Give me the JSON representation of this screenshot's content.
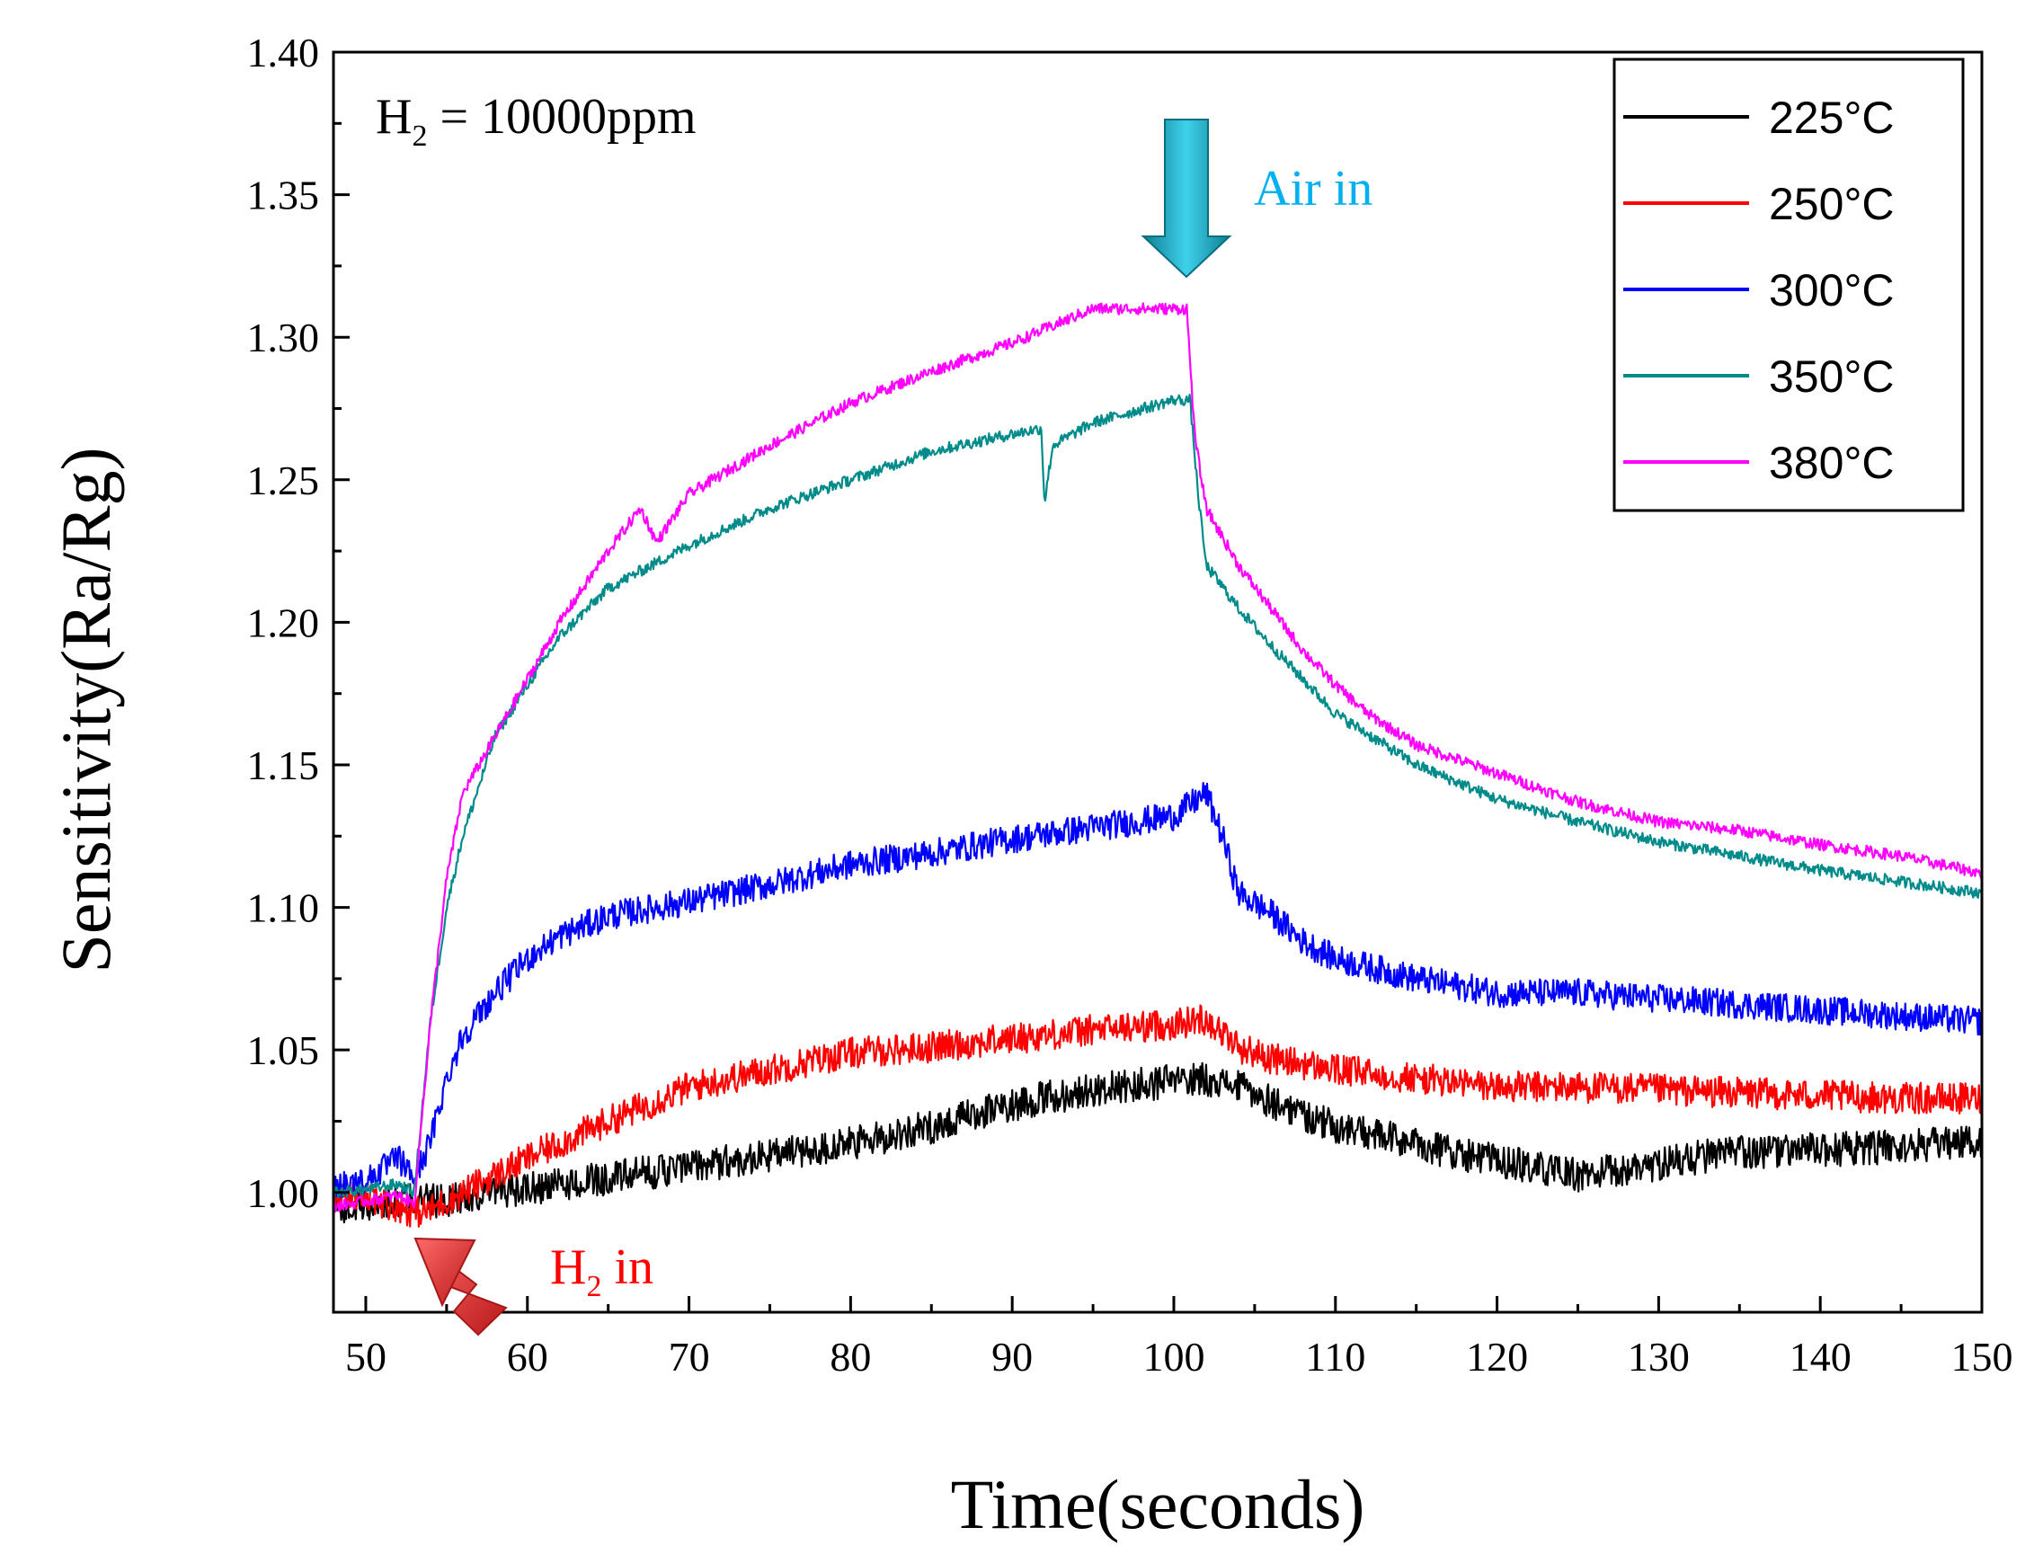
{
  "chart_data": {
    "type": "line",
    "title": "",
    "xlabel": "Time(seconds)",
    "ylabel": "Sensitivity(Ra/Rg)",
    "xlim": [
      48,
      150
    ],
    "ylim": [
      0.958,
      1.4
    ],
    "xticks": [
      50,
      60,
      70,
      80,
      90,
      100,
      110,
      120,
      130,
      140,
      150
    ],
    "xtick_labels": [
      "50",
      "60",
      "70",
      "80",
      "90",
      "100",
      "110",
      "120",
      "130",
      "140",
      "150"
    ],
    "yticks": [
      1.0,
      1.05,
      1.1,
      1.15,
      1.2,
      1.25,
      1.3,
      1.35,
      1.4
    ],
    "ytick_labels": [
      "1.00",
      "1.05",
      "1.10",
      "1.15",
      "1.20",
      "1.25",
      "1.30",
      "1.35",
      "1.40"
    ],
    "legend_position": "top-right",
    "series": [
      {
        "name": "225",
        "unit": "°C",
        "color": "#000000",
        "noise": 0.006,
        "points": [
          [
            48,
            0.995
          ],
          [
            50,
            0.995
          ],
          [
            52,
            0.997
          ],
          [
            54,
            0.997
          ],
          [
            56,
            0.998
          ],
          [
            58,
            1.0
          ],
          [
            60,
            1.001
          ],
          [
            65,
            1.005
          ],
          [
            70,
            1.009
          ],
          [
            75,
            1.013
          ],
          [
            80,
            1.017
          ],
          [
            85,
            1.023
          ],
          [
            90,
            1.031
          ],
          [
            95,
            1.036
          ],
          [
            100,
            1.039
          ],
          [
            102,
            1.04
          ],
          [
            104,
            1.037
          ],
          [
            106,
            1.032
          ],
          [
            110,
            1.023
          ],
          [
            115,
            1.017
          ],
          [
            120,
            1.011
          ],
          [
            125,
            1.006
          ],
          [
            128,
            1.008
          ],
          [
            132,
            1.012
          ],
          [
            135,
            1.014
          ],
          [
            140,
            1.015
          ],
          [
            145,
            1.016
          ],
          [
            150,
            1.018
          ]
        ]
      },
      {
        "name": "250",
        "unit": "°C",
        "color": "#ff0000",
        "noise": 0.0055,
        "points": [
          [
            48,
            0.999
          ],
          [
            50,
            0.998
          ],
          [
            52,
            0.995
          ],
          [
            53,
            0.993
          ],
          [
            54,
            0.994
          ],
          [
            56,
            1.0
          ],
          [
            58,
            1.006
          ],
          [
            60,
            1.012
          ],
          [
            65,
            1.025
          ],
          [
            70,
            1.037
          ],
          [
            75,
            1.043
          ],
          [
            80,
            1.049
          ],
          [
            85,
            1.051
          ],
          [
            90,
            1.054
          ],
          [
            95,
            1.057
          ],
          [
            100,
            1.059
          ],
          [
            102,
            1.061
          ],
          [
            104,
            1.051
          ],
          [
            106,
            1.047
          ],
          [
            110,
            1.043
          ],
          [
            115,
            1.04
          ],
          [
            120,
            1.037
          ],
          [
            125,
            1.037
          ],
          [
            130,
            1.036
          ],
          [
            135,
            1.035
          ],
          [
            140,
            1.034
          ],
          [
            145,
            1.033
          ],
          [
            150,
            1.033
          ]
        ]
      },
      {
        "name": "300",
        "unit": "°C",
        "color": "#0000ff",
        "noise": 0.005,
        "points": [
          [
            48,
            1.003
          ],
          [
            50,
            1.004
          ],
          [
            52,
            1.012
          ],
          [
            53,
            1.005
          ],
          [
            54,
            1.018
          ],
          [
            55,
            1.04
          ],
          [
            56,
            1.055
          ],
          [
            58,
            1.07
          ],
          [
            60,
            1.082
          ],
          [
            62,
            1.09
          ],
          [
            65,
            1.097
          ],
          [
            70,
            1.102
          ],
          [
            75,
            1.108
          ],
          [
            80,
            1.115
          ],
          [
            85,
            1.119
          ],
          [
            90,
            1.124
          ],
          [
            95,
            1.128
          ],
          [
            100,
            1.132
          ],
          [
            102,
            1.14
          ],
          [
            103,
            1.125
          ],
          [
            104,
            1.105
          ],
          [
            106,
            1.098
          ],
          [
            108,
            1.088
          ],
          [
            110,
            1.082
          ],
          [
            115,
            1.075
          ],
          [
            120,
            1.07
          ],
          [
            125,
            1.07
          ],
          [
            130,
            1.068
          ],
          [
            135,
            1.066
          ],
          [
            140,
            1.064
          ],
          [
            145,
            1.062
          ],
          [
            150,
            1.06
          ]
        ]
      },
      {
        "name": "350",
        "unit": "°C",
        "color": "#008b8b",
        "noise": 0.002,
        "points": [
          [
            48,
            1.0
          ],
          [
            50,
            1.001
          ],
          [
            52,
            1.003
          ],
          [
            53,
            1.0
          ],
          [
            54,
            1.06
          ],
          [
            55,
            1.1
          ],
          [
            56,
            1.125
          ],
          [
            58,
            1.16
          ],
          [
            60,
            1.178
          ],
          [
            62,
            1.195
          ],
          [
            65,
            1.212
          ],
          [
            70,
            1.227
          ],
          [
            75,
            1.24
          ],
          [
            80,
            1.25
          ],
          [
            85,
            1.26
          ],
          [
            90,
            1.266
          ],
          [
            91.8,
            1.268
          ],
          [
            92,
            1.242
          ],
          [
            92.5,
            1.262
          ],
          [
            95,
            1.27
          ],
          [
            100,
            1.278
          ],
          [
            101,
            1.278
          ],
          [
            101.5,
            1.245
          ],
          [
            102,
            1.22
          ],
          [
            104,
            1.205
          ],
          [
            106,
            1.192
          ],
          [
            108,
            1.18
          ],
          [
            110,
            1.168
          ],
          [
            115,
            1.15
          ],
          [
            120,
            1.138
          ],
          [
            125,
            1.13
          ],
          [
            130,
            1.123
          ],
          [
            135,
            1.118
          ],
          [
            140,
            1.113
          ],
          [
            145,
            1.109
          ],
          [
            150,
            1.105
          ]
        ]
      },
      {
        "name": "380",
        "unit": "°C",
        "color": "#ff00ff",
        "noise": 0.002,
        "points": [
          [
            48,
            0.995
          ],
          [
            50,
            0.997
          ],
          [
            52,
            0.999
          ],
          [
            53,
            0.996
          ],
          [
            54,
            1.06
          ],
          [
            55,
            1.11
          ],
          [
            56,
            1.14
          ],
          [
            58,
            1.16
          ],
          [
            60,
            1.18
          ],
          [
            62,
            1.2
          ],
          [
            65,
            1.225
          ],
          [
            67,
            1.24
          ],
          [
            68,
            1.228
          ],
          [
            70,
            1.245
          ],
          [
            75,
            1.262
          ],
          [
            80,
            1.277
          ],
          [
            85,
            1.288
          ],
          [
            90,
            1.298
          ],
          [
            95,
            1.31
          ],
          [
            100,
            1.31
          ],
          [
            100.8,
            1.31
          ],
          [
            101.3,
            1.265
          ],
          [
            102,
            1.24
          ],
          [
            104,
            1.22
          ],
          [
            106,
            1.205
          ],
          [
            108,
            1.19
          ],
          [
            110,
            1.178
          ],
          [
            112,
            1.168
          ],
          [
            115,
            1.157
          ],
          [
            120,
            1.147
          ],
          [
            125,
            1.137
          ],
          [
            130,
            1.13
          ],
          [
            135,
            1.127
          ],
          [
            140,
            1.122
          ],
          [
            145,
            1.118
          ],
          [
            150,
            1.112
          ]
        ]
      }
    ],
    "annotations": {
      "gas": {
        "prefix": "H",
        "sub": "2",
        "suffix": " = 10000ppm"
      },
      "air_in": {
        "text": "Air in",
        "color": "#00b0f0",
        "x": 101,
        "y": 1.38
      },
      "h2_in": {
        "prefix": "H",
        "sub": "2",
        "suffix": " in",
        "color": "#ff0000",
        "x": 53,
        "y": 0.993
      }
    }
  }
}
